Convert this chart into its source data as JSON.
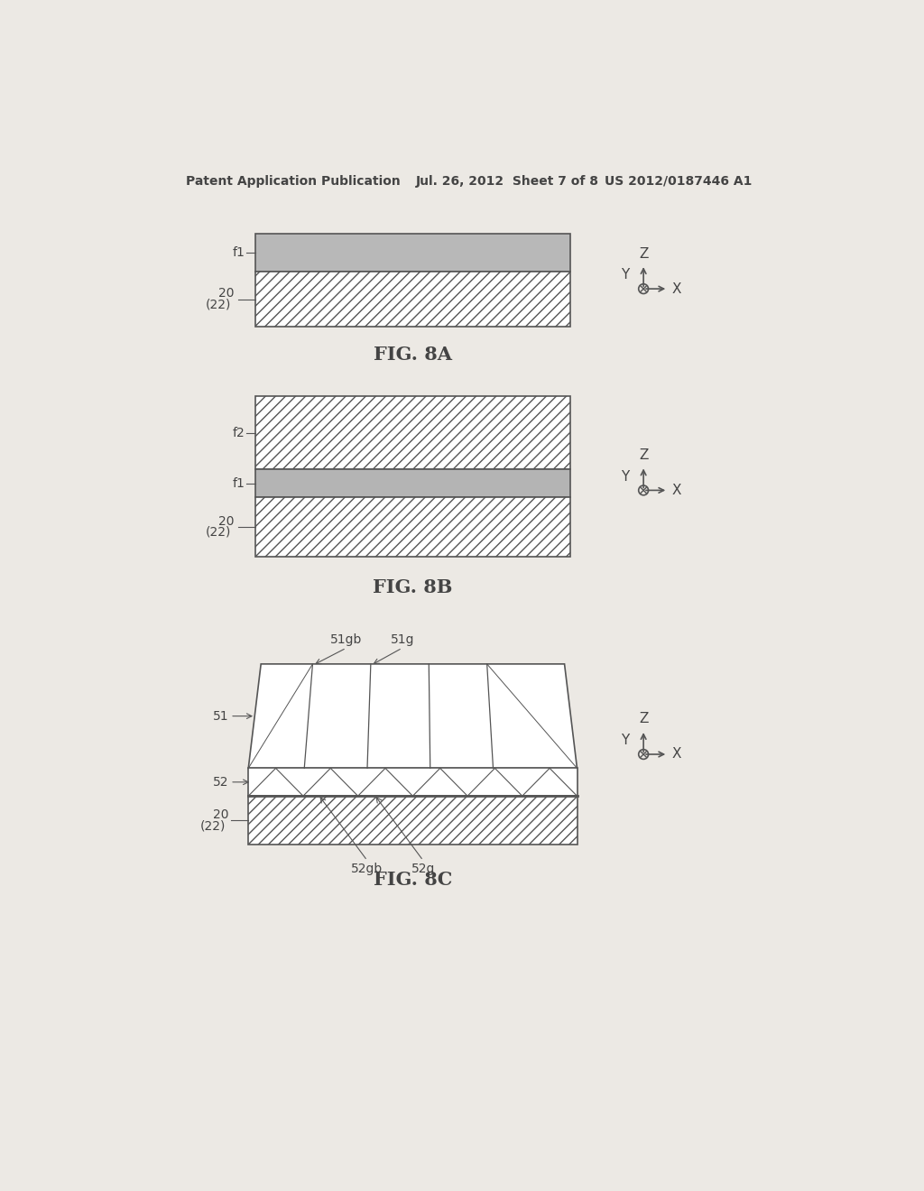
{
  "bg_color": "#ece9e4",
  "line_color": "#555555",
  "gray_fill": "#b8b8b8",
  "white_fill": "#ffffff",
  "header_text_left": "Patent Application Publication",
  "header_text_mid": "Jul. 26, 2012  Sheet 7 of 8",
  "header_text_right": "US 2012/0187446 A1",
  "fig8a_title": "FIG. 8A",
  "fig8b_title": "FIG. 8B",
  "fig8c_title": "FIG. 8C",
  "text_color": "#444444",
  "hatch_color": "#888888"
}
